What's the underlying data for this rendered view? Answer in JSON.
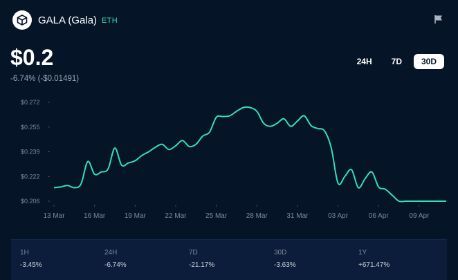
{
  "header": {
    "title": "GALA (Gala)",
    "network": "ETH",
    "logo_icon": "gala-logo-icon",
    "flag_icon": "flag-icon"
  },
  "price": {
    "value": "$0.2",
    "change": "-6.74% (-$0.01491)"
  },
  "ranges": {
    "items": [
      "24H",
      "7D",
      "30D"
    ],
    "active": "30D"
  },
  "colors": {
    "background": "#061428",
    "line": "#2fe0bf",
    "accent_text": "#2fd6b5",
    "stats_panel": "#0b1d3a"
  },
  "chart_data": {
    "type": "line",
    "title": "",
    "xlabel": "",
    "ylabel": "",
    "y_ticks": [
      "$0.272",
      "$0.255",
      "$0.239",
      "$0.222",
      "$0.206"
    ],
    "x_ticks": [
      "13 Mar",
      "16 Mar",
      "19 Mar",
      "22 Mar",
      "25 Mar",
      "28 Mar",
      "31 Mar",
      "03 Apr",
      "06 Apr",
      "09 Apr"
    ],
    "ylim": [
      0.206,
      0.272
    ],
    "xlim": [
      "2022-03-13",
      "2022-04-11"
    ],
    "grid": false,
    "legend": "none",
    "series": [
      {
        "x": [
          "2022-03-13",
          "2022-03-13T12:00",
          "2022-03-14",
          "2022-03-14T12:00",
          "2022-03-15",
          "2022-03-15T12:00",
          "2022-03-16",
          "2022-03-16T12:00",
          "2022-03-17",
          "2022-03-17T12:00",
          "2022-03-18",
          "2022-03-18T12:00",
          "2022-03-19",
          "2022-03-19T12:00",
          "2022-03-20",
          "2022-03-20T12:00",
          "2022-03-21",
          "2022-03-21T12:00",
          "2022-03-22",
          "2022-03-22T12:00",
          "2022-03-23",
          "2022-03-23T12:00",
          "2022-03-24",
          "2022-03-24T12:00",
          "2022-03-25",
          "2022-03-25T12:00",
          "2022-03-26",
          "2022-03-26T12:00",
          "2022-03-27",
          "2022-03-27T12:00",
          "2022-03-28",
          "2022-03-28T12:00",
          "2022-03-29",
          "2022-03-29T12:00",
          "2022-03-30",
          "2022-03-30T12:00",
          "2022-03-31",
          "2022-03-31T12:00",
          "2022-04-01",
          "2022-04-01T12:00",
          "2022-04-02",
          "2022-04-02T12:00",
          "2022-04-03",
          "2022-04-03T12:00",
          "2022-04-04",
          "2022-04-04T12:00",
          "2022-04-05",
          "2022-04-05T12:00",
          "2022-04-06",
          "2022-04-06T12:00",
          "2022-04-07",
          "2022-04-07T12:00",
          "2022-04-08",
          "2022-04-08T12:00",
          "2022-04-09",
          "2022-04-09T12:00",
          "2022-04-10",
          "2022-04-10T12:00",
          "2022-04-11"
        ],
        "values": [
          0.215,
          0.2155,
          0.2165,
          0.215,
          0.2175,
          0.2325,
          0.224,
          0.2255,
          0.2275,
          0.2415,
          0.23,
          0.2315,
          0.233,
          0.2365,
          0.239,
          0.242,
          0.244,
          0.2405,
          0.243,
          0.2465,
          0.2425,
          0.244,
          0.2495,
          0.252,
          0.262,
          0.2625,
          0.263,
          0.266,
          0.2685,
          0.2685,
          0.266,
          0.258,
          0.256,
          0.258,
          0.261,
          0.256,
          0.2595,
          0.263,
          0.2565,
          0.2545,
          0.253,
          0.2415,
          0.218,
          0.2225,
          0.227,
          0.215,
          0.221,
          0.2255,
          0.2155,
          0.214,
          0.21,
          0.206,
          0.206,
          0.206,
          0.206,
          0.206,
          0.206,
          0.206,
          0.206
        ]
      }
    ]
  },
  "stats": [
    {
      "label": "1H",
      "value": "-3.45%"
    },
    {
      "label": "24H",
      "value": "-6.74%"
    },
    {
      "label": "7D",
      "value": "-21.17%"
    },
    {
      "label": "30D",
      "value": "-3.63%"
    },
    {
      "label": "1Y",
      "value": "+671.47%"
    }
  ]
}
